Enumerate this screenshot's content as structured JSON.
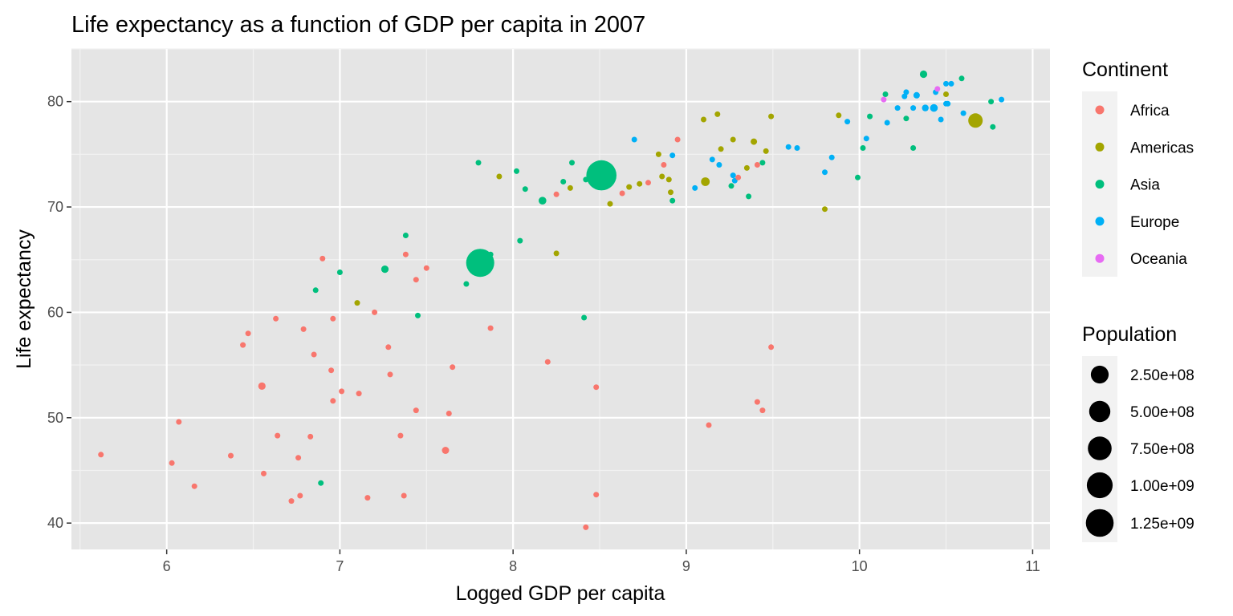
{
  "chart_data": {
    "type": "scatter",
    "title": "Life expectancy as a function of GDP per capita in 2007",
    "xlabel": "Logged GDP per capita",
    "ylabel": "Life expectancy",
    "xlim": [
      5.45,
      11.1
    ],
    "ylim": [
      37.5,
      85
    ],
    "x_ticks": [
      6,
      7,
      8,
      9,
      10,
      11
    ],
    "y_ticks": [
      40,
      50,
      60,
      70,
      80
    ],
    "grid": true,
    "legend_placement": "right",
    "panel_background": "#e5e5e5",
    "color_legend": {
      "title": "Continent",
      "entries": [
        {
          "label": "Africa",
          "color": "#F8766D"
        },
        {
          "label": "Americas",
          "color": "#A3A500"
        },
        {
          "label": "Asia",
          "color": "#00BF7D"
        },
        {
          "label": "Europe",
          "color": "#00B0F6"
        },
        {
          "label": "Oceania",
          "color": "#E76BF3"
        }
      ]
    },
    "size_legend": {
      "title": "Population",
      "entries": [
        {
          "label": "2.50e+08",
          "value": 250000000
        },
        {
          "label": "5.00e+08",
          "value": 500000000
        },
        {
          "label": "7.50e+08",
          "value": 750000000
        },
        {
          "label": "1.00e+09",
          "value": 1000000000
        },
        {
          "label": "1.25e+09",
          "value": 1250000000
        }
      ]
    },
    "series": [
      {
        "name": "Africa",
        "points": [
          [
            5.62,
            46.5,
            30
          ],
          [
            6.03,
            45.7,
            8
          ],
          [
            6.07,
            49.6,
            12
          ],
          [
            6.16,
            43.5,
            12
          ],
          [
            6.37,
            46.4,
            8
          ],
          [
            6.44,
            56.9,
            15
          ],
          [
            6.47,
            58.0,
            10
          ],
          [
            6.55,
            53.0,
            80
          ],
          [
            6.56,
            44.7,
            10
          ],
          [
            6.63,
            59.4,
            8
          ],
          [
            6.64,
            48.3,
            15
          ],
          [
            6.72,
            42.1,
            15
          ],
          [
            6.76,
            46.2,
            15
          ],
          [
            6.77,
            42.6,
            10
          ],
          [
            6.79,
            58.4,
            12
          ],
          [
            6.83,
            48.2,
            12
          ],
          [
            6.85,
            56.0,
            15
          ],
          [
            6.9,
            65.1,
            8
          ],
          [
            6.95,
            54.5,
            20
          ],
          [
            6.96,
            59.4,
            20
          ],
          [
            6.96,
            51.6,
            25
          ],
          [
            7.01,
            52.5,
            40
          ],
          [
            7.11,
            52.3,
            20
          ],
          [
            7.16,
            42.4,
            15
          ],
          [
            7.2,
            60.0,
            20
          ],
          [
            7.28,
            56.7,
            12
          ],
          [
            7.29,
            54.1,
            35
          ],
          [
            7.35,
            48.3,
            20
          ],
          [
            7.37,
            42.6,
            8
          ],
          [
            7.38,
            65.5,
            5
          ],
          [
            7.44,
            63.1,
            15
          ],
          [
            7.44,
            50.7,
            15
          ],
          [
            7.5,
            64.2,
            10
          ],
          [
            7.61,
            46.9,
            75
          ],
          [
            7.63,
            50.4,
            20
          ],
          [
            7.65,
            54.8,
            5
          ],
          [
            7.87,
            58.5,
            35
          ],
          [
            8.2,
            55.3,
            10
          ],
          [
            8.25,
            71.2,
            30
          ],
          [
            8.42,
            39.6,
            5
          ],
          [
            8.48,
            52.9,
            5
          ],
          [
            8.48,
            42.7,
            15
          ],
          [
            8.63,
            71.3,
            45
          ],
          [
            8.78,
            72.3,
            20
          ],
          [
            8.87,
            74.0,
            15
          ],
          [
            8.95,
            76.4,
            5
          ],
          [
            9.13,
            49.3,
            25
          ],
          [
            9.3,
            72.8,
            10
          ],
          [
            9.41,
            74.0,
            12
          ],
          [
            9.41,
            51.5,
            5
          ],
          [
            9.44,
            50.7,
            5
          ],
          [
            9.49,
            56.7,
            5
          ]
        ]
      },
      {
        "name": "Americas",
        "points": [
          [
            7.1,
            60.9,
            10
          ],
          [
            7.92,
            72.9,
            8
          ],
          [
            8.25,
            65.6,
            10
          ],
          [
            8.33,
            71.8,
            15
          ],
          [
            8.56,
            70.3,
            10
          ],
          [
            8.67,
            71.9,
            10
          ],
          [
            8.73,
            72.2,
            15
          ],
          [
            8.84,
            75.0,
            15
          ],
          [
            8.86,
            72.9,
            40
          ],
          [
            8.9,
            72.6,
            8
          ],
          [
            8.91,
            71.4,
            30
          ],
          [
            9.1,
            78.3,
            15
          ],
          [
            9.11,
            72.4,
            110
          ],
          [
            9.18,
            78.8,
            10
          ],
          [
            9.2,
            75.5,
            12
          ],
          [
            9.27,
            76.4,
            10
          ],
          [
            9.35,
            73.7,
            25
          ],
          [
            9.39,
            76.2,
            60
          ],
          [
            9.46,
            75.3,
            30
          ],
          [
            9.49,
            78.6,
            15
          ],
          [
            9.8,
            69.8,
            8
          ],
          [
            9.88,
            78.7,
            10
          ],
          [
            10.5,
            80.7,
            35
          ],
          [
            10.67,
            78.2,
            300
          ]
        ]
      },
      {
        "name": "Asia",
        "points": [
          [
            6.86,
            62.1,
            35
          ],
          [
            6.89,
            43.8,
            30
          ],
          [
            7.0,
            63.8,
            30
          ],
          [
            7.26,
            64.1,
            80
          ],
          [
            7.38,
            67.3,
            25
          ],
          [
            7.45,
            59.7,
            20
          ],
          [
            7.73,
            62.7,
            25
          ],
          [
            7.81,
            64.7,
            1150
          ],
          [
            7.8,
            74.2,
            45
          ],
          [
            7.87,
            65.5,
            45
          ],
          [
            8.02,
            73.4,
            10
          ],
          [
            8.04,
            66.8,
            8
          ],
          [
            8.07,
            71.7,
            45
          ],
          [
            8.17,
            70.6,
            85
          ],
          [
            8.29,
            72.4,
            20
          ],
          [
            8.34,
            74.2,
            20
          ],
          [
            8.41,
            59.5,
            30
          ],
          [
            8.42,
            72.6,
            10
          ],
          [
            8.51,
            73.0,
            1320
          ],
          [
            8.92,
            70.6,
            45
          ],
          [
            9.26,
            72.0,
            8
          ],
          [
            9.36,
            71.0,
            40
          ],
          [
            9.44,
            74.2,
            20
          ],
          [
            9.99,
            72.8,
            30
          ],
          [
            10.02,
            75.6,
            10
          ],
          [
            10.06,
            78.6,
            30
          ],
          [
            10.15,
            80.7,
            10
          ],
          [
            10.27,
            78.4,
            20
          ],
          [
            10.31,
            75.6,
            5
          ],
          [
            10.37,
            82.6,
            80
          ],
          [
            10.59,
            82.2,
            10
          ],
          [
            10.76,
            80.0,
            12
          ],
          [
            10.77,
            77.6,
            10
          ]
        ]
      },
      {
        "name": "Europe",
        "points": [
          [
            8.7,
            76.4,
            10
          ],
          [
            8.92,
            74.9,
            10
          ],
          [
            9.05,
            71.8,
            40
          ],
          [
            9.15,
            74.5,
            8
          ],
          [
            9.19,
            74.0,
            12
          ],
          [
            9.27,
            73.0,
            10
          ],
          [
            9.28,
            72.5,
            15
          ],
          [
            9.59,
            75.7,
            10
          ],
          [
            9.64,
            75.6,
            25
          ],
          [
            9.8,
            73.3,
            15
          ],
          [
            9.84,
            74.7,
            12
          ],
          [
            9.93,
            78.1,
            15
          ],
          [
            10.04,
            76.5,
            15
          ],
          [
            10.16,
            78.0,
            10
          ],
          [
            10.22,
            79.4,
            15
          ],
          [
            10.26,
            80.5,
            45
          ],
          [
            10.27,
            80.9,
            45
          ],
          [
            10.31,
            79.4,
            10
          ],
          [
            10.33,
            80.6,
            60
          ],
          [
            10.38,
            79.4,
            65
          ],
          [
            10.43,
            79.4,
            85
          ],
          [
            10.44,
            80.9,
            20
          ],
          [
            10.47,
            78.3,
            15
          ],
          [
            10.5,
            81.7,
            10
          ],
          [
            10.5,
            79.8,
            30
          ],
          [
            10.51,
            79.8,
            10
          ],
          [
            10.53,
            81.7,
            10
          ],
          [
            10.6,
            78.9,
            12
          ],
          [
            10.82,
            80.2,
            10
          ]
        ]
      },
      {
        "name": "Oceania",
        "points": [
          [
            10.14,
            80.2,
            10
          ],
          [
            10.45,
            81.2,
            20
          ]
        ]
      }
    ]
  }
}
